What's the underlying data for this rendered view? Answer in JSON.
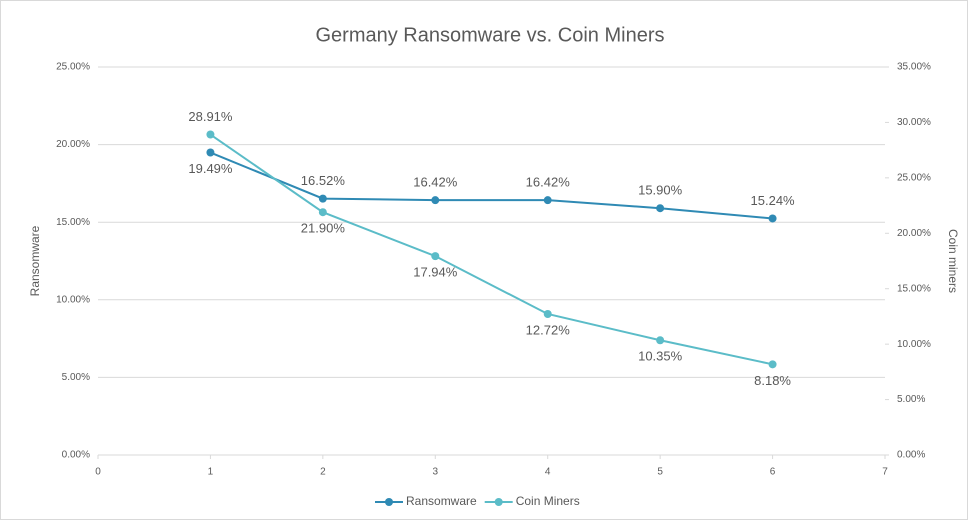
{
  "chart_data": {
    "type": "line",
    "title": "Germany Ransomware vs. Coin Miners",
    "y_label": "Ransomware",
    "y2_label": "Coin miners",
    "x": [
      1,
      2,
      3,
      4,
      5,
      6
    ],
    "series": [
      {
        "name": "Ransomware",
        "color": "#2f8ab4",
        "values": [
          19.49,
          16.52,
          16.42,
          16.42,
          15.9,
          15.24
        ],
        "value_labels": [
          "19.49%",
          "16.52%",
          "16.42%",
          "16.42%",
          "15.90%",
          "15.24%"
        ]
      },
      {
        "name": "Coin Miners",
        "color": "#5bbcc8",
        "axis": "y2",
        "values": [
          28.91,
          21.9,
          17.94,
          12.72,
          10.35,
          8.18
        ],
        "value_labels": [
          "28.91%",
          "21.90%",
          "17.94%",
          "12.72%",
          "10.35%",
          "8.18%"
        ]
      }
    ],
    "xlim": [
      0,
      7
    ],
    "xticks": [
      0,
      1,
      2,
      3,
      4,
      5,
      6,
      7
    ],
    "ylim": [
      0,
      25
    ],
    "yticks": [
      {
        "value": 0,
        "label": "0.00%"
      },
      {
        "value": 5,
        "label": "5.00%"
      },
      {
        "value": 10,
        "label": "10.00%"
      },
      {
        "value": 15,
        "label": "15.00%"
      },
      {
        "value": 20,
        "label": "20.00%"
      },
      {
        "value": 25,
        "label": "25.00%"
      }
    ],
    "y2lim": [
      0,
      35
    ],
    "y2ticks": [
      {
        "value": 0,
        "label": "0.00%"
      },
      {
        "value": 5,
        "label": "5.00%"
      },
      {
        "value": 10,
        "label": "10.00%"
      },
      {
        "value": 15,
        "label": "15.00%"
      },
      {
        "value": 20,
        "label": "20.00%"
      },
      {
        "value": 25,
        "label": "25.00%"
      },
      {
        "value": 30,
        "label": "30.00%"
      },
      {
        "value": 35,
        "label": "35.00%"
      }
    ],
    "grid": true,
    "legend": "bottom"
  }
}
